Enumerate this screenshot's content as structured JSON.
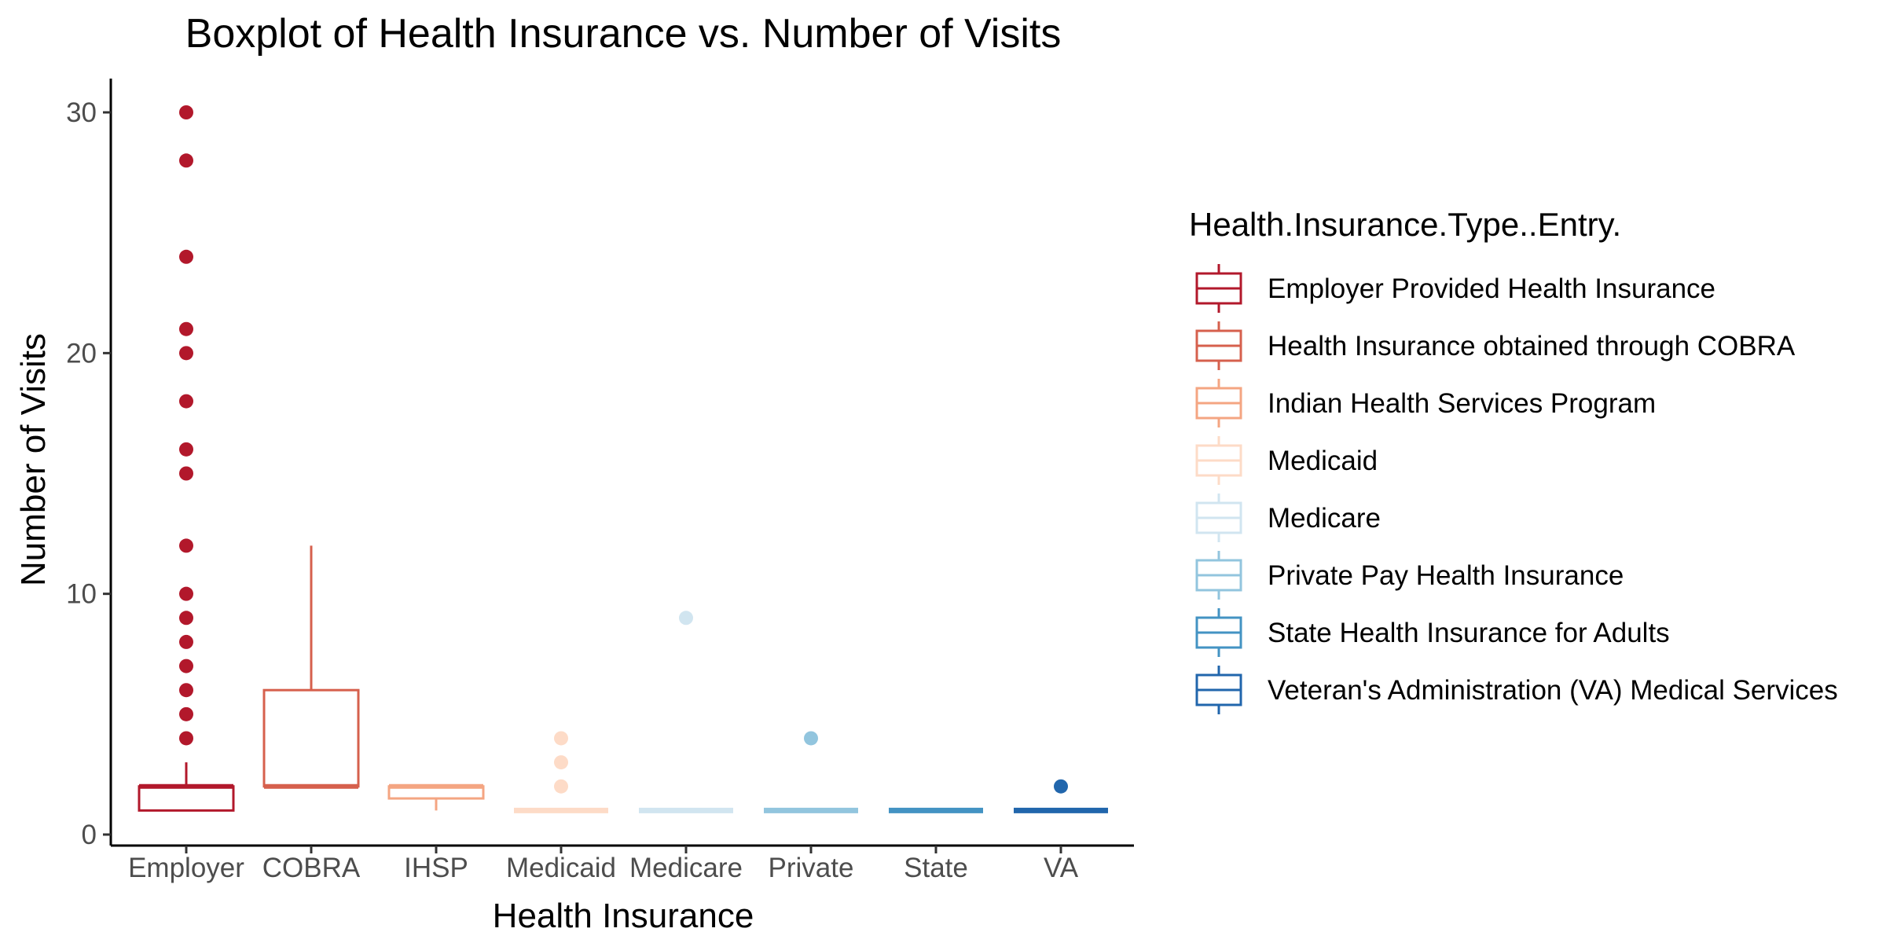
{
  "chart_data": {
    "type": "boxplot",
    "title": "Boxplot of Health Insurance vs. Number of Visits",
    "xlabel": "Health Insurance",
    "ylabel": "Number of Visits",
    "ylim": [
      0,
      31
    ],
    "yticks": [
      0,
      10,
      20,
      30
    ],
    "grid": false,
    "legend_placement": "right",
    "legend_title": "Health.Insurance.Type..Entry.",
    "categories": [
      "Employer",
      "COBRA",
      "IHSP",
      "Medicaid",
      "Medicare",
      "Private",
      "State",
      "VA"
    ],
    "series": [
      {
        "name": "Employer Provided Health Insurance",
        "color": "#b2182b",
        "min": 1,
        "q1": 1,
        "median": 2,
        "q3": 2,
        "max": 3,
        "outliers": [
          4,
          5,
          6,
          7,
          8,
          9,
          10,
          12,
          15,
          16,
          18,
          20,
          21,
          24,
          28,
          30
        ]
      },
      {
        "name": "Health Insurance obtained through COBRA",
        "color": "#d6604d",
        "min": 2,
        "q1": 2,
        "median": 2,
        "q3": 6,
        "max": 12,
        "outliers": []
      },
      {
        "name": "Indian Health Services Program",
        "color": "#f4a582",
        "min": 1,
        "q1": 1.5,
        "median": 2,
        "q3": 2,
        "max": 2,
        "outliers": []
      },
      {
        "name": "Medicaid",
        "color": "#fddbc7",
        "min": 1,
        "q1": 1,
        "median": 1,
        "q3": 1,
        "max": 1,
        "outliers": [
          2,
          3,
          4
        ]
      },
      {
        "name": "Medicare",
        "color": "#d1e5f0",
        "min": 1,
        "q1": 1,
        "median": 1,
        "q3": 1,
        "max": 1,
        "outliers": [
          9
        ]
      },
      {
        "name": "Private Pay Health Insurance",
        "color": "#92c5de",
        "min": 1,
        "q1": 1,
        "median": 1,
        "q3": 1,
        "max": 1,
        "outliers": [
          4
        ]
      },
      {
        "name": "State Health Insurance for Adults",
        "color": "#4393c3",
        "min": 1,
        "q1": 1,
        "median": 1,
        "q3": 1,
        "max": 1,
        "outliers": []
      },
      {
        "name": "Veteran's Administration (VA) Medical Services",
        "color": "#2166ac",
        "min": 1,
        "q1": 1,
        "median": 1,
        "q3": 1,
        "max": 1,
        "outliers": [
          2
        ]
      }
    ]
  }
}
